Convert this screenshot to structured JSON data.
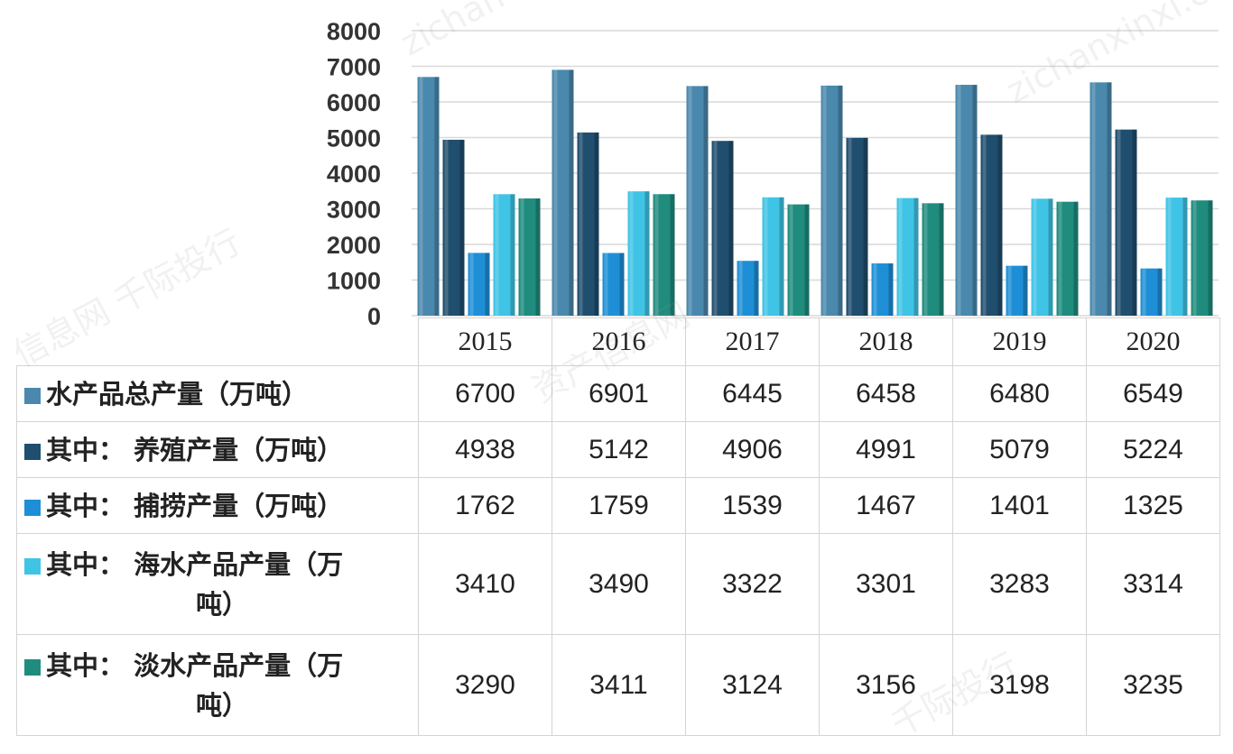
{
  "chart_data": {
    "type": "bar",
    "categories": [
      "2015",
      "2016",
      "2017",
      "2018",
      "2019",
      "2020"
    ],
    "ylim": [
      0,
      8000
    ],
    "yticks": [
      0,
      1000,
      2000,
      3000,
      4000,
      5000,
      6000,
      7000,
      8000
    ],
    "grid": true,
    "legend": "data-table",
    "series": [
      {
        "name": "水产品总产量（万吨）",
        "label_lines": [
          "水产品总产量（万吨）"
        ],
        "color": "#4a88ad",
        "values": [
          6700,
          6901,
          6445,
          6458,
          6480,
          6549
        ]
      },
      {
        "name": "其中：养殖产量（万吨）",
        "label_lines": [
          "其中：  养殖产量（万吨）"
        ],
        "color": "#1f4e6e",
        "values": [
          4938,
          5142,
          4906,
          4991,
          5079,
          5224
        ]
      },
      {
        "name": "其中：捕捞产量（万吨）",
        "label_lines": [
          "其中：  捕捞产量（万吨）"
        ],
        "color": "#1e8fd6",
        "values": [
          1762,
          1759,
          1539,
          1467,
          1401,
          1325
        ]
      },
      {
        "name": "其中：海水产品产量（万吨）",
        "label_lines": [
          "其中：  海水产品产量（万",
          "吨）"
        ],
        "color": "#3fc4e6",
        "values": [
          3410,
          3490,
          3322,
          3301,
          3283,
          3314
        ]
      },
      {
        "name": "其中：淡水产品产量（万吨）",
        "label_lines": [
          "其中：  淡水产品产量（万",
          "吨）"
        ],
        "color": "#1f8c7e",
        "values": [
          3290,
          3411,
          3124,
          3156,
          3198,
          3235
        ]
      }
    ]
  },
  "watermarks": [
    "zichanxinxi.com",
    "信息网 千际投行",
    "资产信息网",
    "千际投行",
    "zichan"
  ]
}
